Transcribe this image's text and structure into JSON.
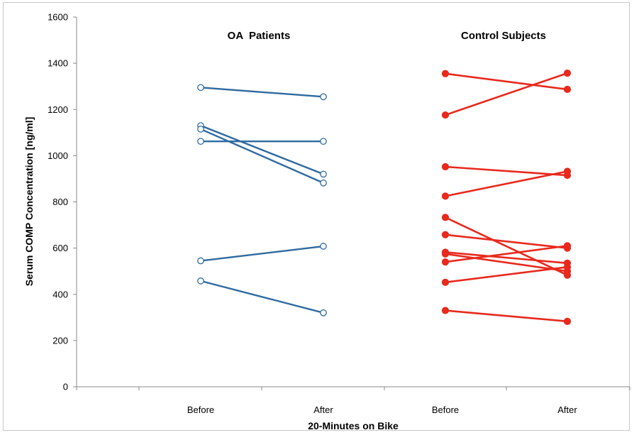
{
  "chart_data": {
    "type": "line",
    "ylabel": "Serum COMP Concentration [ng/ml]",
    "xlabel": "20-Minutes on Bike",
    "ylim": [
      0,
      1600
    ],
    "yticks": [
      "0",
      "200",
      "400",
      "600",
      "800",
      "1000",
      "1200",
      "1400",
      "1600"
    ],
    "xtick_labels": [
      "Before",
      "After",
      "Before",
      "After"
    ],
    "grid": false,
    "groups": [
      {
        "title": "OA  Patients",
        "color": "#2e6aa1",
        "marker": "open-circle",
        "pairs": [
          [
            1295,
            1255
          ],
          [
            1130,
            920
          ],
          [
            1115,
            882
          ],
          [
            1062,
            1062
          ],
          [
            545,
            608
          ],
          [
            458,
            320
          ]
        ]
      },
      {
        "title": "Control Subjects",
        "color": "#e8291c",
        "marker": "filled-circle",
        "pairs": [
          [
            1355,
            1287
          ],
          [
            1176,
            1357
          ],
          [
            952,
            915
          ],
          [
            825,
            932
          ],
          [
            733,
            483
          ],
          [
            658,
            600
          ],
          [
            582,
            535
          ],
          [
            575,
            500
          ],
          [
            540,
            610
          ],
          [
            452,
            518
          ],
          [
            330,
            283
          ]
        ]
      }
    ]
  }
}
